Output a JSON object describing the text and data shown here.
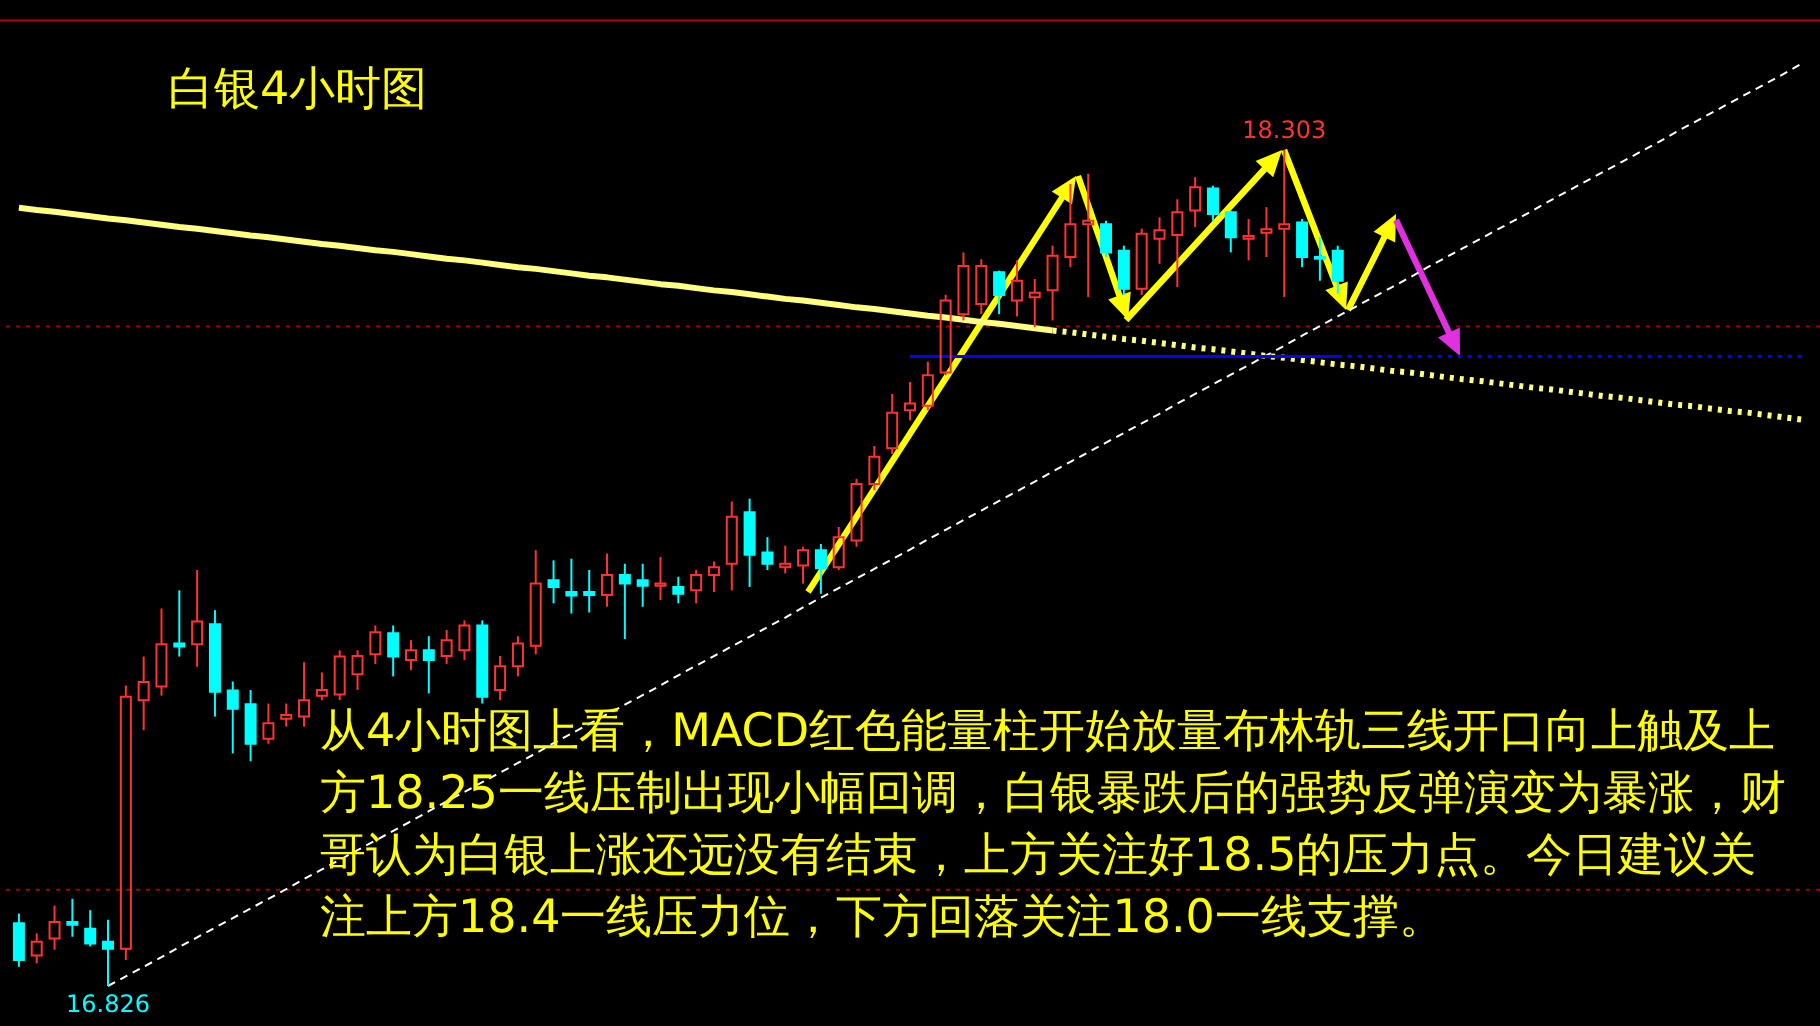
{
  "chart_data": {
    "type": "candlestick",
    "title": "白银4小时图",
    "categories": [
      null,
      null,
      null,
      null,
      null,
      null,
      null,
      null,
      null,
      null,
      null,
      null,
      null,
      null,
      null,
      null,
      null,
      null,
      null,
      null,
      null,
      null,
      null,
      null,
      null,
      null,
      null,
      null,
      null,
      null,
      null,
      null,
      null,
      null,
      null,
      null,
      null,
      null,
      null,
      null,
      null,
      null,
      null,
      null,
      null,
      null,
      null,
      null,
      null,
      null,
      null,
      null,
      null,
      null,
      null,
      null,
      null,
      null,
      null,
      null,
      null,
      null,
      null,
      null,
      null,
      null,
      null,
      null,
      null,
      null,
      null,
      null,
      null,
      null,
      null,
      null,
      null,
      null,
      null,
      null,
      null,
      null,
      null,
      null,
      null,
      null,
      null,
      null,
      null,
      null,
      null,
      null,
      null,
      null,
      null,
      null,
      null,
      null,
      null,
      null,
      null
    ],
    "ohlc": [
      [
        16.937,
        16.954,
        16.86,
        16.872
      ],
      [
        16.88,
        16.919,
        16.866,
        16.904
      ],
      [
        16.91,
        16.968,
        16.89,
        16.939
      ],
      [
        16.939,
        16.98,
        16.913,
        16.934
      ],
      [
        16.927,
        16.96,
        16.896,
        16.901
      ],
      [
        16.904,
        16.943,
        16.826,
        16.892
      ],
      [
        16.892,
        17.357,
        16.872,
        17.337
      ],
      [
        17.331,
        17.408,
        17.278,
        17.363
      ],
      [
        17.355,
        17.493,
        17.339,
        17.43
      ],
      [
        17.431,
        17.525,
        17.408,
        17.426
      ],
      [
        17.43,
        17.561,
        17.39,
        17.47
      ],
      [
        17.465,
        17.49,
        17.302,
        17.346
      ],
      [
        17.348,
        17.364,
        17.237,
        17.316
      ],
      [
        17.324,
        17.349,
        17.223,
        17.254
      ],
      [
        17.263,
        17.325,
        17.254,
        17.29
      ],
      [
        17.298,
        17.325,
        17.284,
        17.305
      ],
      [
        17.302,
        17.398,
        17.284,
        17.331
      ],
      [
        17.339,
        17.38,
        17.331,
        17.349
      ],
      [
        17.341,
        17.419,
        17.331,
        17.408
      ],
      [
        17.377,
        17.419,
        17.349,
        17.409
      ],
      [
        17.412,
        17.463,
        17.395,
        17.451
      ],
      [
        17.449,
        17.463,
        17.373,
        17.408
      ],
      [
        17.402,
        17.437,
        17.384,
        17.419
      ],
      [
        17.419,
        17.444,
        17.343,
        17.402
      ],
      [
        17.409,
        17.455,
        17.395,
        17.437
      ],
      [
        17.419,
        17.472,
        17.402,
        17.463
      ],
      [
        17.463,
        17.472,
        17.325,
        17.337
      ],
      [
        17.349,
        17.409,
        17.331,
        17.391
      ],
      [
        17.391,
        17.444,
        17.373,
        17.431
      ],
      [
        17.427,
        17.596,
        17.412,
        17.537
      ],
      [
        17.543,
        17.578,
        17.502,
        17.531
      ],
      [
        17.522,
        17.581,
        17.484,
        17.516
      ],
      [
        17.522,
        17.561,
        17.486,
        17.517
      ],
      [
        17.517,
        17.59,
        17.496,
        17.552
      ],
      [
        17.552,
        17.572,
        17.439,
        17.537
      ],
      [
        17.543,
        17.572,
        17.496,
        17.533
      ],
      [
        17.533,
        17.584,
        17.508,
        17.537
      ],
      [
        17.531,
        17.549,
        17.502,
        17.519
      ],
      [
        17.525,
        17.561,
        17.502,
        17.552
      ],
      [
        17.552,
        17.576,
        17.522,
        17.566
      ],
      [
        17.572,
        17.682,
        17.525,
        17.655
      ],
      [
        17.663,
        17.687,
        17.531,
        17.588
      ],
      [
        17.592,
        17.619,
        17.561,
        17.572
      ],
      [
        17.566,
        17.604,
        17.555,
        17.572
      ],
      [
        17.569,
        17.602,
        17.537,
        17.596
      ],
      [
        17.596,
        17.607,
        17.519,
        17.564
      ],
      [
        17.566,
        17.637,
        17.561,
        17.619
      ],
      [
        17.613,
        17.722,
        17.602,
        17.713
      ],
      [
        17.713,
        17.78,
        17.702,
        17.761
      ],
      [
        17.776,
        17.872,
        17.766,
        17.839
      ],
      [
        17.843,
        17.893,
        17.825,
        17.855
      ],
      [
        17.851,
        17.929,
        17.843,
        17.905
      ],
      [
        17.91,
        18.047,
        17.905,
        18.037
      ],
      [
        18.013,
        18.122,
        18.002,
        18.098
      ],
      [
        18.031,
        18.11,
        18.013,
        18.098
      ],
      [
        18.087,
        18.09,
        18.013,
        18.047
      ],
      [
        18.037,
        18.108,
        18.009,
        18.072
      ],
      [
        18.043,
        18.075,
        17.99,
        18.051
      ],
      [
        18.055,
        18.134,
        18.002,
        18.116
      ],
      [
        18.114,
        18.243,
        18.096,
        18.172
      ],
      [
        18.172,
        18.261,
        18.043,
        18.178
      ],
      [
        18.172,
        18.178,
        18.114,
        18.122
      ],
      [
        18.125,
        18.134,
        18.047,
        18.058
      ],
      [
        18.058,
        18.164,
        18.047,
        18.155
      ],
      [
        18.146,
        18.184,
        18.102,
        18.161
      ],
      [
        18.153,
        18.216,
        18.061,
        18.193
      ],
      [
        18.196,
        18.255,
        18.167,
        18.237
      ],
      [
        18.235,
        18.24,
        18.178,
        18.19
      ],
      [
        18.193,
        18.196,
        18.122,
        18.149
      ],
      [
        18.146,
        18.181,
        18.108,
        18.151
      ],
      [
        18.157,
        18.202,
        18.114,
        18.163
      ],
      [
        18.164,
        18.303,
        18.043,
        18.172
      ],
      [
        18.175,
        18.181,
        18.096,
        18.114
      ],
      [
        18.114,
        18.149,
        18.072,
        18.111
      ],
      [
        18.125,
        18.134,
        18.049,
        18.072
      ],
      null,
      null,
      null,
      null,
      null,
      null,
      null,
      null,
      null,
      null,
      null,
      null,
      null,
      null,
      null,
      null,
      null,
      null,
      null,
      null,
      null,
      null,
      null,
      null,
      null,
      null
    ],
    "colors": [
      "#00ffff",
      "#ff3232",
      "#ff3232",
      "#00ffff",
      "#00ffff",
      "#00ffff",
      "#ff3232",
      "#ff3232",
      "#ff3232",
      "#00ffff",
      "#ff3232",
      "#00ffff",
      "#00ffff",
      "#00ffff",
      "#ff3232",
      "#ff3232",
      "#ff3232",
      "#ff3232",
      "#ff3232",
      "#ff3232",
      "#ff3232",
      "#00ffff",
      "#ff3232",
      "#00ffff",
      "#ff3232",
      "#ff3232",
      "#00ffff",
      "#ff3232",
      "#ff3232",
      "#ff3232",
      "#00ffff",
      "#00ffff",
      "#00ffff",
      "#ff3232",
      "#00ffff",
      "#00ffff",
      "#ff3232",
      "#00ffff",
      "#ff3232",
      "#ff3232",
      "#ff3232",
      "#00ffff",
      "#00ffff",
      "#ff3232",
      "#ff3232",
      "#00ffff",
      "#ff3232",
      "#ff3232",
      "#ff3232",
      "#ff3232",
      "#ff3232",
      "#ff3232",
      "#ff3232",
      "#ff3232",
      "#ff3232",
      "#00ffff",
      "#ff3232",
      "#ff3232",
      "#ff3232",
      "#ff3232",
      "#ff3232",
      "#00ffff",
      "#00ffff",
      "#ff3232",
      "#ff3232",
      "#ff3232",
      "#ff3232",
      "#00ffff",
      "#00ffff",
      "#ff3232",
      "#ff3232",
      "#ff3232",
      "#00ffff",
      "#00ffff",
      "#00ffff",
      null,
      null,
      null,
      null,
      null,
      null,
      null,
      null,
      null,
      null,
      null,
      null,
      null,
      null,
      null,
      null,
      null,
      null,
      null,
      null,
      null,
      null,
      null,
      null,
      null,
      null
    ],
    "series": [
      {
        "type": "line",
        "color": "#ffff80",
        "line_style": "solid",
        "values": [
          18.201,
          18.197,
          18.194,
          18.19,
          18.186,
          18.182,
          18.179,
          18.175,
          18.171,
          18.167,
          18.164,
          18.16,
          18.156,
          18.152,
          18.149,
          18.145,
          18.141,
          18.137,
          18.134,
          18.13,
          18.126,
          18.123,
          18.119,
          18.115,
          18.111,
          18.108,
          18.104,
          18.1,
          18.096,
          18.093,
          18.089,
          18.085,
          18.081,
          18.078,
          18.074,
          18.07,
          18.066,
          18.063,
          18.059,
          18.055,
          18.052,
          18.048,
          18.044,
          18.04,
          18.037,
          18.033,
          18.029,
          18.025,
          18.022,
          18.018,
          18.014,
          18.01,
          18.007,
          18.003,
          17.999,
          17.996,
          17.992,
          17.988,
          17.984,
          null,
          null,
          null,
          null,
          null,
          null,
          null,
          null,
          null,
          null,
          null,
          null,
          null,
          null,
          null,
          null,
          null,
          null,
          null,
          null,
          null,
          null,
          null,
          null,
          null,
          null,
          null,
          null,
          null,
          null,
          null,
          null,
          null,
          null,
          null,
          null,
          null,
          null,
          null,
          null,
          null,
          null
        ]
      },
      {
        "type": "line",
        "color": "#ffff80",
        "line_style": "dotted",
        "values": [
          null,
          null,
          null,
          null,
          null,
          null,
          null,
          null,
          null,
          null,
          null,
          null,
          null,
          null,
          null,
          null,
          null,
          null,
          null,
          null,
          null,
          null,
          null,
          null,
          null,
          null,
          null,
          null,
          null,
          null,
          null,
          null,
          null,
          null,
          null,
          null,
          null,
          null,
          null,
          null,
          null,
          null,
          null,
          null,
          null,
          null,
          null,
          null,
          null,
          null,
          null,
          null,
          null,
          null,
          null,
          null,
          null,
          null,
          17.984,
          17.981,
          17.977,
          17.973,
          17.969,
          17.966,
          17.962,
          17.958,
          17.954,
          17.951,
          17.947,
          17.943,
          17.939,
          17.936,
          17.932,
          17.928,
          17.924,
          17.921,
          17.917,
          17.913,
          17.91,
          17.906,
          17.902,
          17.898,
          17.895,
          17.891,
          17.887,
          17.883,
          17.88,
          17.876,
          17.872,
          17.868,
          17.865,
          17.861,
          17.857,
          17.853,
          17.85,
          17.846,
          17.842,
          17.839,
          17.835,
          17.831,
          17.827
        ]
      },
      {
        "type": "line",
        "color": "#ffffff",
        "line_style": "dashed",
        "values": [
          null,
          null,
          null,
          null,
          null,
          16.826,
          16.843,
          16.86,
          16.877,
          16.895,
          16.912,
          16.929,
          16.946,
          16.963,
          16.98,
          16.997,
          17.015,
          17.032,
          17.049,
          17.066,
          17.083,
          17.1,
          17.117,
          17.135,
          17.152,
          17.169,
          17.186,
          17.203,
          17.22,
          17.237,
          17.255,
          17.272,
          17.289,
          17.306,
          17.323,
          17.34,
          17.357,
          17.375,
          17.392,
          17.409,
          17.426,
          17.443,
          17.46,
          17.477,
          17.495,
          17.512,
          17.529,
          17.546,
          17.563,
          17.58,
          17.597,
          17.615,
          17.632,
          17.649,
          17.666,
          17.683,
          17.7,
          17.717,
          17.735,
          17.752,
          17.769,
          17.786,
          17.803,
          17.82,
          17.837,
          17.855,
          17.872,
          17.889,
          17.906,
          17.923,
          17.94,
          17.957,
          17.975,
          17.992,
          18.009,
          18.026,
          18.043,
          18.06,
          18.077,
          18.095,
          18.112,
          18.129,
          18.146,
          18.163,
          18.18,
          18.197,
          18.215,
          18.232,
          18.249,
          18.266,
          18.283,
          18.3,
          18.317,
          18.335,
          18.352,
          18.369,
          18.386,
          18.403,
          18.42,
          18.437,
          18.455
        ]
      },
      {
        "type": "line",
        "color": "#0000ff",
        "line_style": "solid",
        "values": [
          null,
          null,
          null,
          null,
          null,
          null,
          null,
          null,
          null,
          null,
          null,
          null,
          null,
          null,
          null,
          null,
          null,
          null,
          null,
          null,
          null,
          null,
          null,
          null,
          null,
          null,
          null,
          null,
          null,
          null,
          null,
          null,
          null,
          null,
          null,
          null,
          null,
          null,
          null,
          null,
          null,
          null,
          null,
          null,
          null,
          null,
          null,
          null,
          null,
          null,
          17.938,
          17.938,
          17.938,
          17.938,
          17.938,
          17.938,
          17.938,
          17.938,
          17.938,
          17.938,
          17.938,
          17.938,
          17.938,
          17.938,
          17.938,
          17.938,
          17.938,
          17.938,
          17.938,
          17.938,
          17.938,
          17.938,
          17.938,
          17.938,
          17.938,
          null,
          null,
          null,
          null,
          null,
          null,
          null,
          null,
          null,
          null,
          null,
          null,
          null,
          null,
          null,
          null,
          null,
          null,
          null,
          null,
          null,
          null,
          null,
          null,
          null,
          null
        ]
      },
      {
        "type": "line",
        "color": "#0000ff",
        "line_style": "dotted",
        "values": [
          null,
          null,
          null,
          null,
          null,
          null,
          null,
          null,
          null,
          null,
          null,
          null,
          null,
          null,
          null,
          null,
          null,
          null,
          null,
          null,
          null,
          null,
          null,
          null,
          null,
          null,
          null,
          null,
          null,
          null,
          null,
          null,
          null,
          null,
          null,
          null,
          null,
          null,
          null,
          null,
          null,
          null,
          null,
          null,
          null,
          null,
          null,
          null,
          null,
          null,
          null,
          null,
          null,
          null,
          null,
          null,
          null,
          null,
          null,
          null,
          null,
          null,
          null,
          null,
          null,
          null,
          null,
          null,
          null,
          null,
          null,
          null,
          null,
          null,
          17.938,
          17.938,
          17.938,
          17.938,
          17.938,
          17.938,
          17.938,
          17.938,
          17.938,
          17.938,
          17.938,
          17.938,
          17.938,
          17.938,
          17.938,
          17.938,
          17.938,
          17.938,
          17.938,
          17.938,
          17.938,
          17.938,
          17.938,
          17.938,
          17.938,
          17.938,
          17.938
        ]
      }
    ],
    "ref_lines": [
      {
        "axis": "y",
        "value": 18.532,
        "color": "#c00000",
        "line_style": "solid"
      },
      {
        "axis": "y",
        "value": 17.991,
        "color": "#a00000",
        "line_style": "dotted"
      },
      {
        "axis": "y",
        "value": 16.996,
        "color": "#a00000",
        "line_style": "dotted"
      }
    ],
    "annotations": [
      {
        "text": "18.303",
        "y": 18.303
      },
      {
        "text": "16.826",
        "y": 16.826
      },
      "从4小时图上看，MACD红色能量柱开始放量布林轨三线开口向上触及上方18.25一线压制出现小幅回调，白银暴跌后的强势反弹演变为暴涨，财哥认为白银上涨还远没有结束，上方关注好18.5的压力点。今日建议关注上方18.4一线压力位，下方回落关注18.0一线支撑。"
    ]
  }
}
